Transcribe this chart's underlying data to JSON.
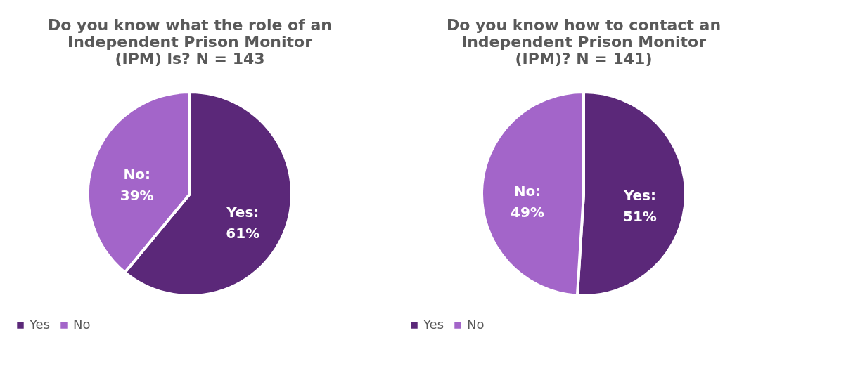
{
  "chart_data": [
    {
      "type": "pie",
      "title": "Do you know what the role of an Independent Prison Monitor (IPM) is? N = 143",
      "categories": [
        "Yes",
        "No"
      ],
      "values": [
        61,
        39
      ],
      "colors": [
        "#5b2879",
        "#a365c9"
      ],
      "value_labels": [
        "Yes: 61%",
        "No: 39%"
      ],
      "legend": "bottom"
    },
    {
      "type": "pie",
      "title": "Do you know how to contact an Independent Prison Monitor (IPM)? N = 141)",
      "categories": [
        "Yes",
        "No"
      ],
      "values": [
        51,
        49
      ],
      "colors": [
        "#5b2879",
        "#a365c9"
      ],
      "value_labels": [
        "Yes: 51%",
        "No: 49%"
      ],
      "legend": "bottom"
    }
  ]
}
